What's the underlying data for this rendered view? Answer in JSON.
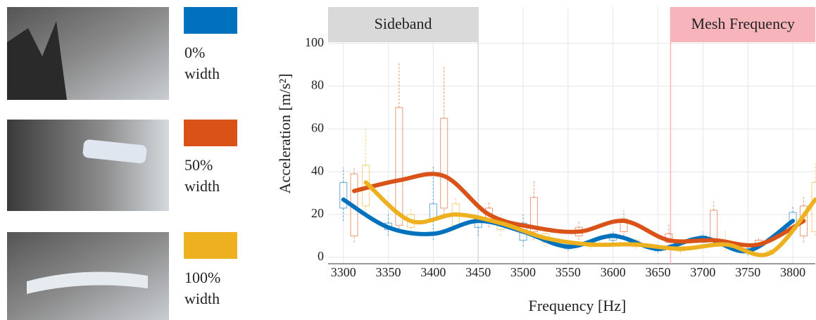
{
  "chart_data": {
    "type": "line",
    "x_label": "Frequency [Hz]",
    "y_label": "Acceleration [m/s²]",
    "xlim": [
      3283,
      3825
    ],
    "ylim": [
      -3,
      117
    ],
    "xticks": [
      3300,
      3350,
      3400,
      3450,
      3500,
      3550,
      3600,
      3650,
      3700,
      3750,
      3800
    ],
    "yticks": [
      0,
      20,
      40,
      60,
      80,
      100
    ],
    "grid": true,
    "regions": [
      {
        "label": "Sideband",
        "x": [
          3283,
          3450
        ],
        "color": "#d9d9d9"
      },
      {
        "label": "Mesh Frequency",
        "x": [
          3664,
          3825
        ],
        "color": "#f8b4bb"
      }
    ],
    "series": [
      {
        "name": "0% width",
        "color": "#0072bd",
        "x": [
          3300,
          3350,
          3400,
          3450,
          3500,
          3550,
          3600,
          3650,
          3700,
          3750,
          3800
        ],
        "values": [
          27,
          14,
          11,
          17,
          12,
          5,
          10,
          4,
          9,
          3,
          17
        ],
        "boxes": [
          [
            17,
            23,
            35,
            42
          ],
          [
            10,
            13,
            16,
            21
          ],
          [
            8,
            18,
            25,
            43
          ],
          [
            10,
            14,
            17,
            18
          ],
          [
            5,
            8,
            16,
            20
          ],
          [
            3,
            4,
            7,
            8
          ],
          [
            7,
            8,
            11,
            12
          ],
          [
            2,
            3,
            5,
            6
          ],
          [
            5,
            7,
            10,
            12
          ],
          [
            1,
            2,
            4,
            5
          ],
          [
            12,
            13,
            21,
            24
          ]
        ]
      },
      {
        "name": "50% width",
        "color": "#d95319",
        "x": [
          3312,
          3362,
          3412,
          3462,
          3512,
          3562,
          3612,
          3662,
          3712,
          3762,
          3812
        ],
        "values": [
          31,
          36,
          38,
          20,
          14,
          12,
          17,
          8,
          8,
          6,
          17
        ],
        "boxes": [
          [
            7,
            10,
            39,
            42
          ],
          [
            12,
            15,
            70,
            91
          ],
          [
            20,
            23,
            65,
            89
          ],
          [
            14,
            17,
            23,
            26
          ],
          [
            8,
            12,
            28,
            36
          ],
          [
            8,
            10,
            14,
            17
          ],
          [
            10,
            12,
            18,
            22
          ],
          [
            5,
            7,
            11,
            16
          ],
          [
            5,
            8,
            22,
            26
          ],
          [
            4,
            5,
            8,
            9
          ],
          [
            7,
            10,
            24,
            29
          ]
        ]
      },
      {
        "name": "100% width",
        "color": "#edb120",
        "x": [
          3325,
          3375,
          3425,
          3475,
          3525,
          3575,
          3625,
          3675,
          3725,
          3775,
          3825
        ],
        "values": [
          35,
          17,
          20,
          16,
          9,
          6,
          6,
          4,
          6,
          2,
          27
        ],
        "boxes": [
          [
            20,
            24,
            43,
            60
          ],
          [
            10,
            14,
            20,
            23
          ],
          [
            13,
            15,
            25,
            28
          ],
          [
            10,
            13,
            18,
            20
          ],
          [
            5,
            7,
            11,
            14
          ],
          [
            4,
            5,
            7,
            8
          ],
          [
            4,
            5,
            8,
            9
          ],
          [
            2,
            3,
            5,
            6
          ],
          [
            3,
            5,
            8,
            13
          ],
          [
            1,
            1.5,
            3,
            4
          ],
          [
            10,
            12,
            35,
            44
          ]
        ]
      }
    ]
  }
}
